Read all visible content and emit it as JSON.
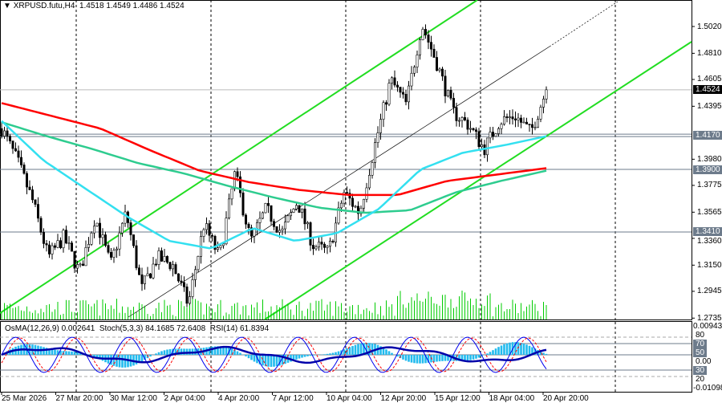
{
  "header": {
    "symbol": "XRPUSD.futu,H4",
    "ohlc": "1.4518 1.4549 1.4486 1.4524"
  },
  "oscillator_header": {
    "osma": "OsMA(12,26,9) 0.002641",
    "stoch": "Stoch(5,3,3) 84.1685 72.6408",
    "rsi": "RSI(14) 61.8394"
  },
  "colors": {
    "bull": "#00cc00",
    "ma200": "#ff0000",
    "ma144": "#2ecc8f",
    "ma50": "#33e0f0",
    "channel": "#22dd22",
    "osma": "#22bbee",
    "rsi": "#0000aa"
  },
  "chart_data": {
    "type": "candlestick",
    "price_axis": [
      "1.5020",
      "1.4810",
      "1.4605",
      "1.4395",
      "1.3980",
      "1.3775",
      "1.3565",
      "1.3360",
      "1.3150",
      "1.2945",
      "1.2735"
    ],
    "ylim": [
      1.2735,
      1.502
    ],
    "price_tags": {
      "current": "1.4524",
      "levels": [
        "1.4170",
        "1.3900",
        "1.3410"
      ]
    },
    "close_waypoints": [
      1.422,
      1.397,
      1.365,
      1.321,
      1.337,
      1.309,
      1.353,
      1.315,
      1.356,
      1.296,
      1.321,
      1.315,
      1.284,
      1.347,
      1.321,
      1.387,
      1.334,
      1.359,
      1.34,
      1.365,
      1.331,
      1.325,
      1.372,
      1.356,
      1.41,
      1.46,
      1.441,
      1.504,
      1.472,
      1.435,
      1.425,
      1.406,
      1.428,
      1.432,
      1.419,
      1.4524
    ],
    "ma_red": [
      1.442,
      1.432,
      1.422,
      1.405,
      1.389,
      1.38,
      1.374,
      1.37,
      1.37,
      1.381,
      1.386,
      1.391
    ],
    "ma_green": [
      1.427,
      1.416,
      1.406,
      1.395,
      1.387,
      1.377,
      1.368,
      1.36,
      1.356,
      1.358,
      1.372,
      1.381,
      1.389
    ],
    "ma_cyan": [
      1.428,
      1.397,
      1.375,
      1.353,
      1.334,
      1.328,
      1.344,
      1.334,
      1.34,
      1.359,
      1.39,
      1.403,
      1.409,
      1.416
    ],
    "time_labels": [
      "25 Mar 2026",
      "27 Mar 20:00",
      "30 Mar 12:00",
      "2 Apr 04:00",
      "4 Apr 20:00",
      "7 Apr 12:00",
      "10 Apr 04:00",
      "12 Apr 20:00",
      "15 Apr 12:00",
      "18 Apr 04:00",
      "20 Apr 20:00"
    ],
    "osc_axis": {
      "top": "0.009432",
      "bottom": "-0.01098",
      "zero": "0.00",
      "levels": [
        "80",
        "70",
        "50",
        "30",
        "20"
      ]
    }
  }
}
